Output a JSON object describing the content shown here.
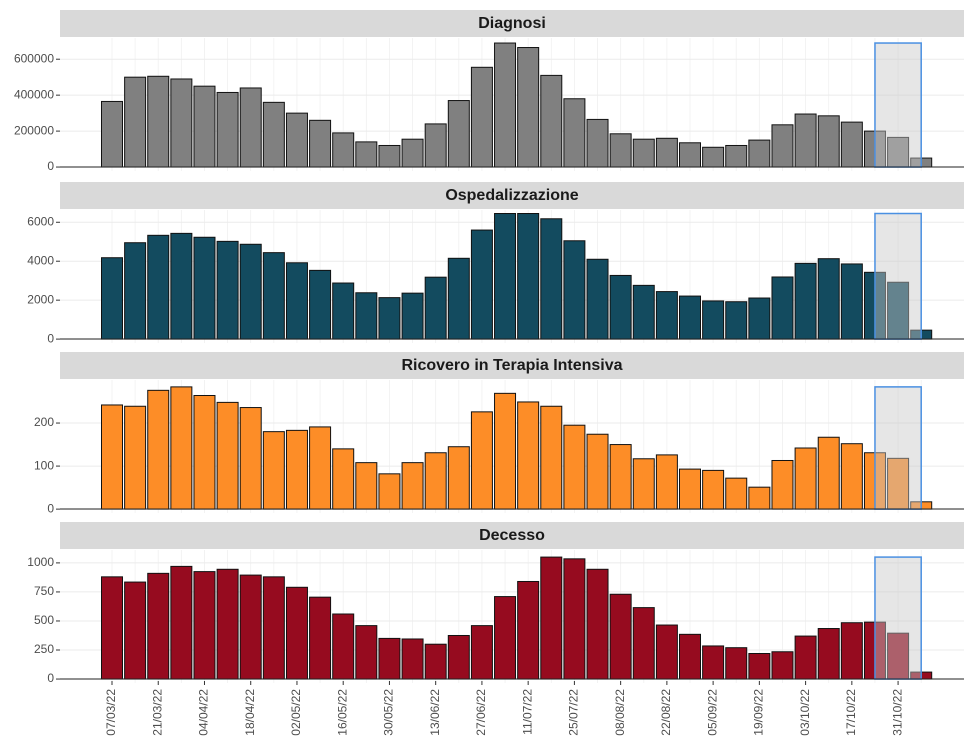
{
  "chart_data": [
    {
      "type": "bar",
      "title": "Diagnosi",
      "color": "#808080",
      "values": [
        365000,
        500000,
        505000,
        490000,
        450000,
        415000,
        440000,
        360000,
        300000,
        260000,
        190000,
        140000,
        120000,
        155000,
        240000,
        370000,
        555000,
        690000,
        665000,
        510000,
        380000,
        265000,
        185000,
        155000,
        160000,
        135000,
        110000,
        120000,
        150000,
        235000,
        295000,
        285000,
        250000,
        200000,
        165000,
        50000
      ],
      "ylim": [
        -22000,
        718000
      ],
      "yticks": [
        0,
        200000,
        400000,
        600000
      ],
      "grid": true
    },
    {
      "type": "bar",
      "title": "Ospedalizzazione",
      "color": "#134b5f",
      "values": [
        4180,
        4950,
        5330,
        5430,
        5230,
        5020,
        4870,
        4440,
        3920,
        3530,
        2880,
        2380,
        2130,
        2360,
        3180,
        4150,
        5600,
        6450,
        6450,
        6180,
        5050,
        4100,
        3270,
        2760,
        2440,
        2210,
        1960,
        1920,
        2110,
        3190,
        3890,
        4130,
        3860,
        3430,
        2920,
        460
      ],
      "ylim": [
        -200,
        6630
      ],
      "yticks": [
        0,
        2000,
        4000,
        6000
      ],
      "grid": true
    },
    {
      "type": "bar",
      "title": "Ricovero in Terapia Intensiva",
      "color": "#fd8d27",
      "values": [
        242,
        239,
        276,
        284,
        264,
        248,
        236,
        180,
        183,
        191,
        140,
        108,
        82,
        108,
        131,
        145,
        226,
        269,
        249,
        239,
        195,
        174,
        150,
        117,
        126,
        93,
        90,
        72,
        51,
        113,
        142,
        167,
        152,
        131,
        118,
        17
      ],
      "ylim": [
        -9,
        300
      ],
      "yticks": [
        0,
        100,
        200
      ],
      "grid": true
    },
    {
      "type": "bar",
      "title": "Decesso",
      "color": "#960b1f",
      "values": [
        880,
        835,
        910,
        970,
        925,
        945,
        895,
        880,
        790,
        705,
        560,
        460,
        350,
        345,
        300,
        375,
        460,
        710,
        840,
        1050,
        1035,
        945,
        730,
        615,
        465,
        385,
        285,
        270,
        220,
        235,
        370,
        435,
        485,
        490,
        395,
        60
      ],
      "ylim": [
        -34,
        1111
      ],
      "yticks": [
        0,
        250,
        500,
        750,
        1000
      ],
      "grid": true,
      "categories": [
        "07/03/22",
        null,
        "21/03/22",
        null,
        "04/04/22",
        null,
        "18/04/22",
        null,
        "02/05/22",
        null,
        "16/05/22",
        null,
        "30/05/22",
        null,
        "13/06/22",
        null,
        "27/06/22",
        null,
        "11/07/22",
        null,
        "25/07/22",
        null,
        "08/08/22",
        null,
        "22/08/22",
        null,
        "05/09/22",
        null,
        "19/09/22",
        null,
        "03/10/22",
        null,
        "17/10/22",
        null,
        "31/10/22",
        null
      ]
    }
  ]
}
